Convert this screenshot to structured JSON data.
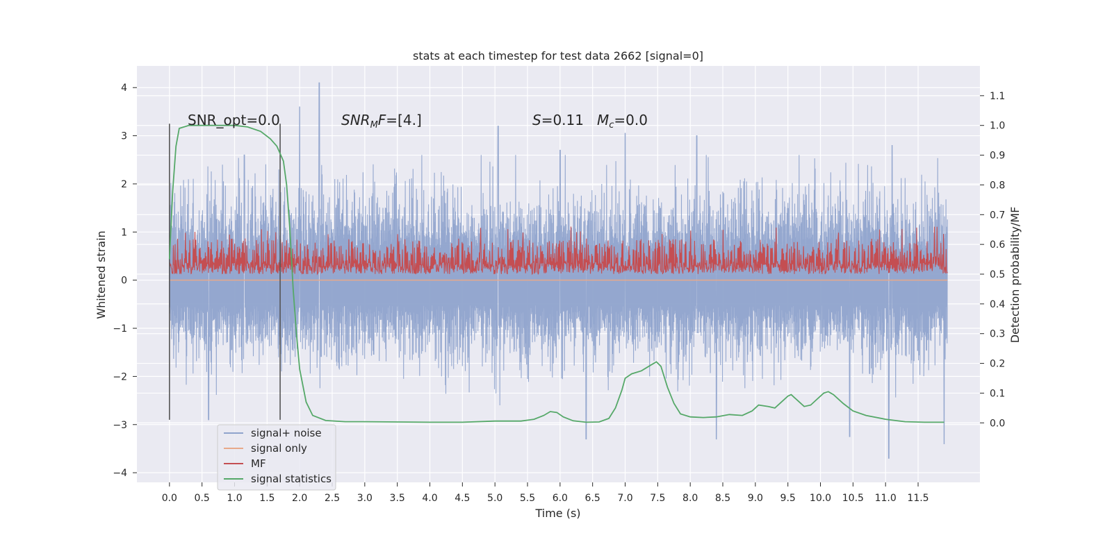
{
  "chart_data": {
    "type": "line",
    "title": "stats at each timestep for test data 2662 [signal=0]",
    "xlabel": "Time (s)",
    "ylabel_left": "Whitened strain",
    "ylabel_right": "Detection probability/MF",
    "xlim": [
      -0.5,
      12.45
    ],
    "ylim_left": [
      -4.2,
      4.45
    ],
    "ylim_right": [
      -0.2,
      1.2
    ],
    "x_ticks": [
      "0.0",
      "0.5",
      "1.0",
      "1.5",
      "2.0",
      "2.5",
      "3.0",
      "3.5",
      "4.0",
      "4.5",
      "5.0",
      "5.5",
      "6.0",
      "6.5",
      "7.0",
      "7.5",
      "8.0",
      "8.5",
      "9.0",
      "9.5",
      "10.0",
      "10.5",
      "11.0",
      "11.5"
    ],
    "y_ticks_left": [
      "4",
      "3",
      "2",
      "1",
      "0",
      "−1",
      "−2",
      "−3",
      "−4"
    ],
    "y_ticks_right": [
      "1.1",
      "1.0",
      "0.9",
      "0.8",
      "0.7",
      "0.6",
      "0.5",
      "0.4",
      "0.3",
      "0.2",
      "0.1",
      "0.0"
    ],
    "grid": true,
    "legend_location": "lower-left",
    "annotations": [
      {
        "text": "SNR_opt=0.0",
        "x": 0.2,
        "y": 3.3
      },
      {
        "text": "SNRMF=[4.]",
        "x": 2.6,
        "y": 3.3
      },
      {
        "text": "S=0.11",
        "x": 5.6,
        "y": 3.3
      },
      {
        "text": "Mc=0.0",
        "x": 6.6,
        "y": 3.3
      }
    ],
    "vertical_markers": [
      {
        "x": 0.0,
        "y_range": [
          -2.9,
          3.25
        ]
      },
      {
        "x": 1.7,
        "y_range": [
          -2.9,
          3.25
        ]
      }
    ],
    "colors": {
      "signal_noise": "#8fa3cc",
      "signal_only": "#e8a98a",
      "mf": "#c44e52",
      "signal_statistics": "#55a868",
      "marker": "#555555",
      "plot_bg": "#eaeaf2"
    },
    "series": [
      {
        "name": "signal+ noise",
        "axis": "left",
        "x_range": [
          0.0,
          11.95
        ],
        "envelope_typical": [
          -1.5,
          1.6
        ],
        "peaks": [
          {
            "x": 2.3,
            "y": 4.1
          },
          {
            "x": 2.0,
            "y": 3.6
          },
          {
            "x": 5.05,
            "y": 3.2
          },
          {
            "x": 7.0,
            "y": 3.05
          },
          {
            "x": 8.1,
            "y": 3.0
          },
          {
            "x": 11.1,
            "y": 2.8
          },
          {
            "x": 6.0,
            "y": 2.7
          },
          {
            "x": 1.15,
            "y": 2.6
          }
        ],
        "troughs": [
          {
            "x": 11.05,
            "y": -3.7
          },
          {
            "x": 11.9,
            "y": -3.4
          },
          {
            "x": 6.4,
            "y": -3.3
          },
          {
            "x": 8.4,
            "y": -3.3
          },
          {
            "x": 10.45,
            "y": -3.25
          },
          {
            "x": 0.6,
            "y": -2.9
          }
        ]
      },
      {
        "name": "signal only",
        "axis": "left",
        "x": [
          0.0,
          11.95
        ],
        "y": [
          0.0,
          0.0
        ]
      },
      {
        "name": "MF",
        "axis": "right",
        "x_range": [
          0.0,
          11.95
        ],
        "typical_range": [
          0.5,
          0.62
        ],
        "max": 0.66
      },
      {
        "name": "signal statistics",
        "axis": "right",
        "x": [
          0.0,
          0.05,
          0.1,
          0.15,
          0.3,
          0.6,
          1.0,
          1.2,
          1.4,
          1.55,
          1.65,
          1.75,
          1.8,
          1.85,
          1.9,
          1.95,
          2.0,
          2.1,
          2.2,
          2.4,
          2.7,
          3.0,
          3.5,
          4.0,
          4.5,
          5.0,
          5.4,
          5.6,
          5.75,
          5.85,
          5.95,
          6.05,
          6.2,
          6.4,
          6.6,
          6.75,
          6.85,
          6.95,
          7.0,
          7.1,
          7.25,
          7.4,
          7.48,
          7.55,
          7.65,
          7.75,
          7.85,
          8.0,
          8.2,
          8.4,
          8.6,
          8.8,
          8.95,
          9.05,
          9.2,
          9.3,
          9.4,
          9.5,
          9.55,
          9.65,
          9.75,
          9.85,
          9.95,
          10.05,
          10.12,
          10.2,
          10.35,
          10.5,
          10.7,
          11.0,
          11.3,
          11.6,
          11.9
        ],
        "y": [
          0.55,
          0.78,
          0.93,
          0.99,
          1.0,
          1.0,
          1.0,
          0.995,
          0.98,
          0.955,
          0.93,
          0.88,
          0.8,
          0.65,
          0.45,
          0.3,
          0.18,
          0.07,
          0.025,
          0.008,
          0.004,
          0.004,
          0.003,
          0.002,
          0.002,
          0.006,
          0.006,
          0.012,
          0.025,
          0.038,
          0.035,
          0.02,
          0.007,
          0.002,
          0.003,
          0.015,
          0.05,
          0.11,
          0.15,
          0.165,
          0.175,
          0.195,
          0.205,
          0.19,
          0.12,
          0.065,
          0.03,
          0.02,
          0.018,
          0.02,
          0.028,
          0.025,
          0.04,
          0.06,
          0.055,
          0.05,
          0.07,
          0.09,
          0.095,
          0.075,
          0.055,
          0.06,
          0.08,
          0.1,
          0.105,
          0.095,
          0.065,
          0.04,
          0.025,
          0.012,
          0.004,
          0.002,
          0.002
        ]
      }
    ]
  }
}
